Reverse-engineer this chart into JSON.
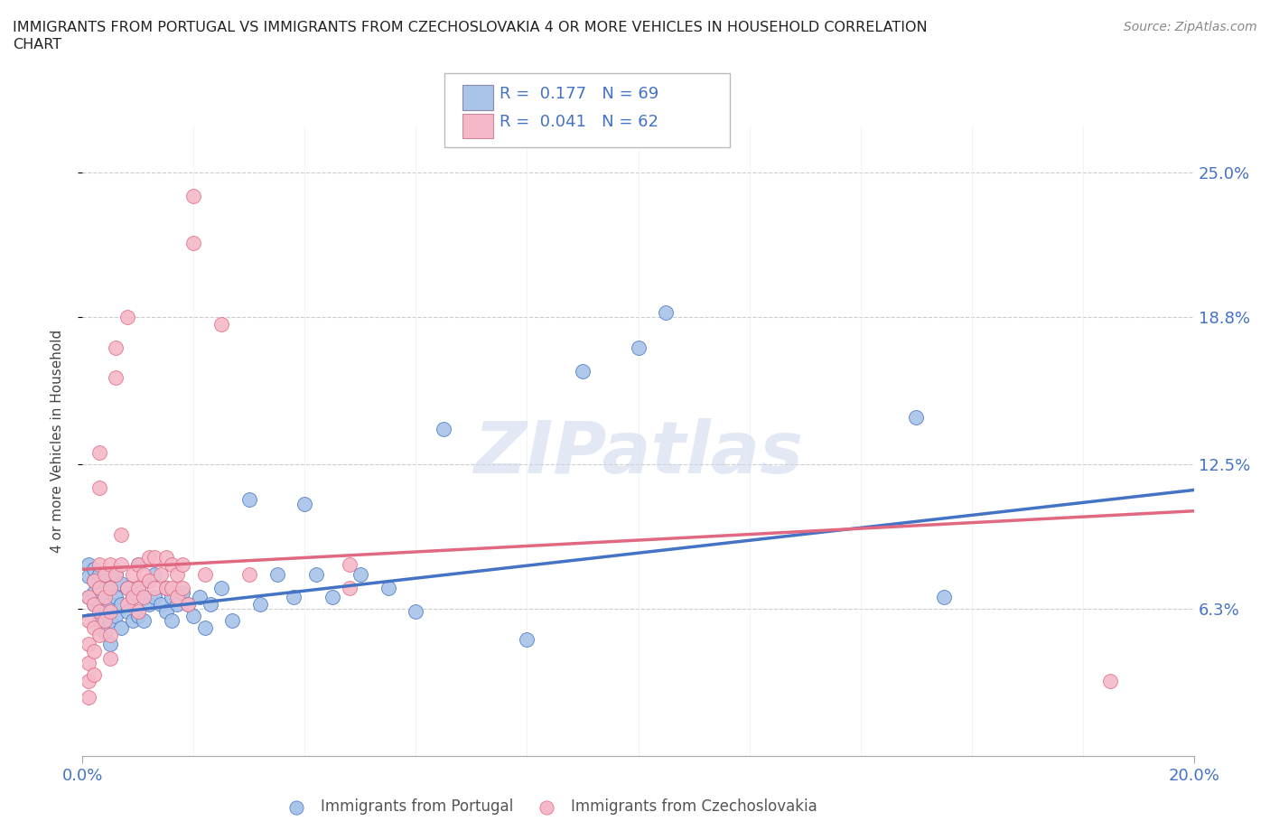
{
  "title_line1": "IMMIGRANTS FROM PORTUGAL VS IMMIGRANTS FROM CZECHOSLOVAKIA 4 OR MORE VEHICLES IN HOUSEHOLD CORRELATION",
  "title_line2": "CHART",
  "source": "Source: ZipAtlas.com",
  "ylabel": "4 or more Vehicles in Household",
  "ytick_labels": [
    "6.3%",
    "12.5%",
    "18.8%",
    "25.0%"
  ],
  "ytick_values": [
    0.063,
    0.125,
    0.188,
    0.25
  ],
  "xlim": [
    0.0,
    0.2
  ],
  "ylim": [
    0.0,
    0.27
  ],
  "color_portugal": "#a8c4e8",
  "color_czechoslovakia": "#f5b8c8",
  "line_color_portugal": "#4472c4",
  "line_color_czechoslovakia": "#e06880",
  "watermark_text": "ZIPatlas",
  "portugal_trend": [
    0.0,
    0.06,
    0.2,
    0.114
  ],
  "czechoslovakia_trend": [
    0.0,
    0.08,
    0.2,
    0.105
  ],
  "portugal_scatter": [
    [
      0.001,
      0.082
    ],
    [
      0.001,
      0.077
    ],
    [
      0.001,
      0.068
    ],
    [
      0.002,
      0.08
    ],
    [
      0.002,
      0.075
    ],
    [
      0.002,
      0.07
    ],
    [
      0.002,
      0.065
    ],
    [
      0.003,
      0.078
    ],
    [
      0.003,
      0.072
    ],
    [
      0.003,
      0.065
    ],
    [
      0.003,
      0.058
    ],
    [
      0.004,
      0.075
    ],
    [
      0.004,
      0.068
    ],
    [
      0.004,
      0.06
    ],
    [
      0.004,
      0.053
    ],
    [
      0.005,
      0.072
    ],
    [
      0.005,
      0.065
    ],
    [
      0.005,
      0.058
    ],
    [
      0.005,
      0.048
    ],
    [
      0.006,
      0.078
    ],
    [
      0.006,
      0.068
    ],
    [
      0.006,
      0.06
    ],
    [
      0.007,
      0.074
    ],
    [
      0.007,
      0.065
    ],
    [
      0.007,
      0.055
    ],
    [
      0.008,
      0.072
    ],
    [
      0.008,
      0.062
    ],
    [
      0.009,
      0.068
    ],
    [
      0.009,
      0.058
    ],
    [
      0.01,
      0.082
    ],
    [
      0.01,
      0.072
    ],
    [
      0.01,
      0.06
    ],
    [
      0.011,
      0.068
    ],
    [
      0.011,
      0.058
    ],
    [
      0.012,
      0.075
    ],
    [
      0.012,
      0.065
    ],
    [
      0.013,
      0.078
    ],
    [
      0.013,
      0.068
    ],
    [
      0.014,
      0.065
    ],
    [
      0.015,
      0.072
    ],
    [
      0.015,
      0.062
    ],
    [
      0.016,
      0.068
    ],
    [
      0.016,
      0.058
    ],
    [
      0.017,
      0.065
    ],
    [
      0.018,
      0.07
    ],
    [
      0.019,
      0.065
    ],
    [
      0.02,
      0.06
    ],
    [
      0.021,
      0.068
    ],
    [
      0.022,
      0.055
    ],
    [
      0.023,
      0.065
    ],
    [
      0.025,
      0.072
    ],
    [
      0.027,
      0.058
    ],
    [
      0.03,
      0.11
    ],
    [
      0.032,
      0.065
    ],
    [
      0.035,
      0.078
    ],
    [
      0.038,
      0.068
    ],
    [
      0.04,
      0.108
    ],
    [
      0.042,
      0.078
    ],
    [
      0.045,
      0.068
    ],
    [
      0.05,
      0.078
    ],
    [
      0.055,
      0.072
    ],
    [
      0.06,
      0.062
    ],
    [
      0.065,
      0.14
    ],
    [
      0.08,
      0.05
    ],
    [
      0.09,
      0.165
    ],
    [
      0.1,
      0.175
    ],
    [
      0.105,
      0.19
    ],
    [
      0.15,
      0.145
    ],
    [
      0.155,
      0.068
    ]
  ],
  "czechoslovakia_scatter": [
    [
      0.001,
      0.068
    ],
    [
      0.001,
      0.058
    ],
    [
      0.001,
      0.048
    ],
    [
      0.001,
      0.04
    ],
    [
      0.001,
      0.032
    ],
    [
      0.001,
      0.025
    ],
    [
      0.002,
      0.075
    ],
    [
      0.002,
      0.065
    ],
    [
      0.002,
      0.055
    ],
    [
      0.002,
      0.045
    ],
    [
      0.002,
      0.035
    ],
    [
      0.003,
      0.082
    ],
    [
      0.003,
      0.072
    ],
    [
      0.003,
      0.062
    ],
    [
      0.003,
      0.052
    ],
    [
      0.003,
      0.115
    ],
    [
      0.003,
      0.13
    ],
    [
      0.004,
      0.078
    ],
    [
      0.004,
      0.068
    ],
    [
      0.004,
      0.058
    ],
    [
      0.005,
      0.082
    ],
    [
      0.005,
      0.072
    ],
    [
      0.005,
      0.062
    ],
    [
      0.005,
      0.052
    ],
    [
      0.005,
      0.042
    ],
    [
      0.006,
      0.162
    ],
    [
      0.006,
      0.175
    ],
    [
      0.006,
      0.078
    ],
    [
      0.007,
      0.095
    ],
    [
      0.007,
      0.082
    ],
    [
      0.008,
      0.072
    ],
    [
      0.008,
      0.065
    ],
    [
      0.008,
      0.188
    ],
    [
      0.009,
      0.078
    ],
    [
      0.009,
      0.068
    ],
    [
      0.01,
      0.082
    ],
    [
      0.01,
      0.072
    ],
    [
      0.01,
      0.062
    ],
    [
      0.011,
      0.078
    ],
    [
      0.011,
      0.068
    ],
    [
      0.012,
      0.085
    ],
    [
      0.012,
      0.075
    ],
    [
      0.013,
      0.085
    ],
    [
      0.013,
      0.072
    ],
    [
      0.014,
      0.078
    ],
    [
      0.015,
      0.085
    ],
    [
      0.015,
      0.072
    ],
    [
      0.016,
      0.082
    ],
    [
      0.016,
      0.072
    ],
    [
      0.017,
      0.078
    ],
    [
      0.017,
      0.068
    ],
    [
      0.018,
      0.082
    ],
    [
      0.018,
      0.072
    ],
    [
      0.019,
      0.065
    ],
    [
      0.02,
      0.22
    ],
    [
      0.02,
      0.24
    ],
    [
      0.022,
      0.078
    ],
    [
      0.025,
      0.185
    ],
    [
      0.03,
      0.078
    ],
    [
      0.048,
      0.082
    ],
    [
      0.048,
      0.072
    ],
    [
      0.185,
      0.032
    ]
  ]
}
